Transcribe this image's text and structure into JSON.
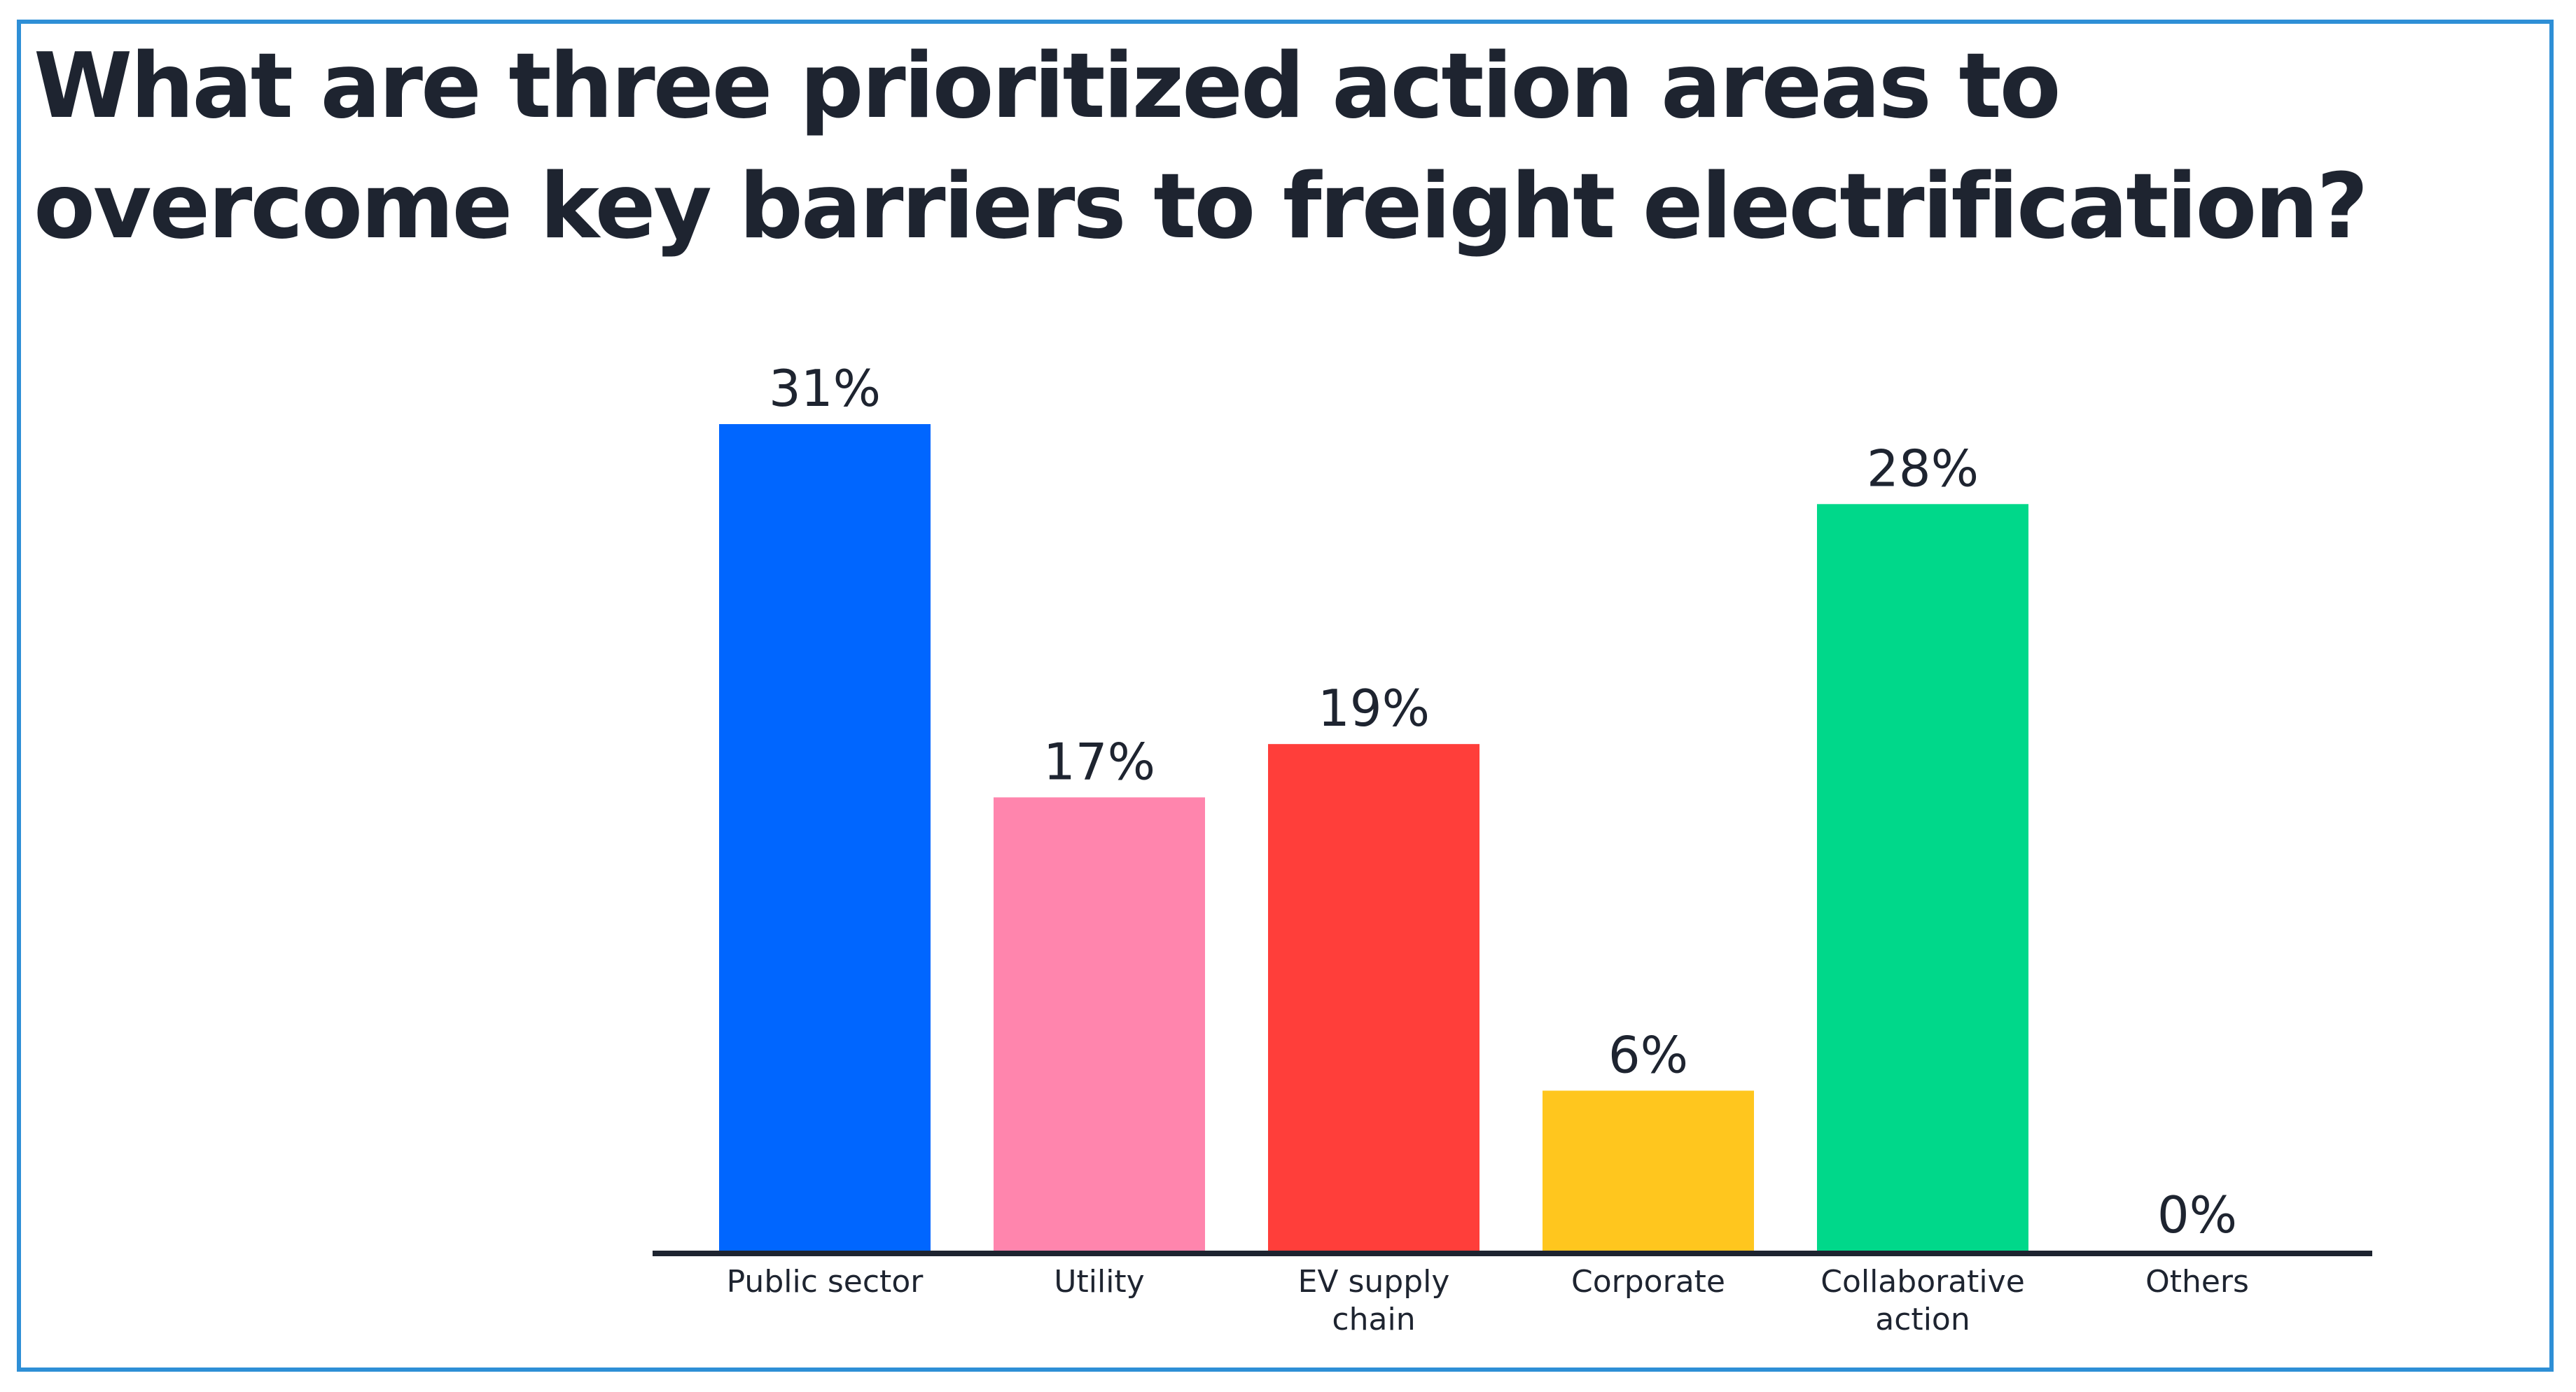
{
  "chart_data": {
    "type": "bar",
    "title": "What are three prioritized action areas to overcome key barriers to freight electrification?",
    "categories": [
      "Public sector",
      "Utility",
      "EV supply chain",
      "Corporate",
      "Collaborative action",
      "Others"
    ],
    "category_lines": [
      [
        "Public sector"
      ],
      [
        "Utility"
      ],
      [
        "EV supply",
        "chain"
      ],
      [
        "Corporate"
      ],
      [
        "Collaborative",
        "action"
      ],
      [
        "Others"
      ]
    ],
    "values": [
      31,
      17,
      19,
      6,
      28,
      0
    ],
    "value_labels": [
      "31%",
      "17%",
      "19%",
      "6%",
      "28%",
      "0%"
    ],
    "colors": [
      "#0066ff",
      "#ff85ad",
      "#ff3e3a",
      "#ffc61e",
      "#00d88a",
      "#cccccc"
    ],
    "xlabel": "",
    "ylabel": "",
    "ylim": [
      0,
      31
    ],
    "grid": false,
    "legend": "none",
    "axis_color": "#1e2430"
  }
}
